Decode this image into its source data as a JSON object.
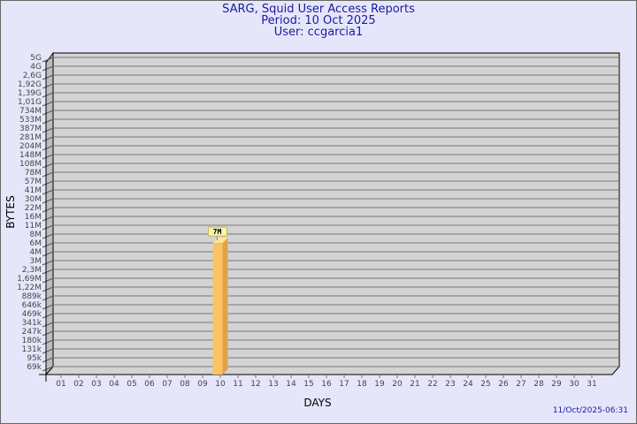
{
  "header": {
    "title": "SARG, Squid User Access Reports",
    "period": "Period: 10 Oct 2025",
    "user": "User: ccgarcia1"
  },
  "timestamp": "11/Oct/2025-06:31",
  "colors": {
    "background": "#e6e6fa",
    "plot": "#d3d3d3",
    "bar_front": "#fcc365",
    "bar_side": "#e0a348",
    "bar_top": "#fde59a",
    "title": "#1a1aa0",
    "label_box": "#f4f4b4"
  },
  "chart_data": {
    "type": "bar",
    "xlabel": "DAYS",
    "ylabel": "BYTES",
    "y_scale": "log-like (non-linear tick labels)",
    "y_ticks": [
      "5G",
      "4G",
      "2,6G",
      "1,92G",
      "1,39G",
      "1,01G",
      "734M",
      "533M",
      "387M",
      "281M",
      "204M",
      "148M",
      "108M",
      "78M",
      "57M",
      "41M",
      "30M",
      "22M",
      "16M",
      "11M",
      "8M",
      "6M",
      "4M",
      "3M",
      "2,3M",
      "1,69M",
      "1,22M",
      "889k",
      "646k",
      "469k",
      "341k",
      "247k",
      "180k",
      "131k",
      "95k",
      "69k"
    ],
    "y_tick_values": [
      5000000000.0,
      4000000000.0,
      2600000000.0,
      1920000000.0,
      1390000000.0,
      1010000000.0,
      734000000.0,
      533000000.0,
      387000000.0,
      281000000.0,
      204000000.0,
      148000000.0,
      108000000.0,
      78000000.0,
      57000000.0,
      41000000.0,
      30000000.0,
      22000000.0,
      16000000.0,
      11000000.0,
      8000000.0,
      6000000.0,
      4000000.0,
      3000000.0,
      2300000.0,
      1690000.0,
      1220000.0,
      889000.0,
      646000.0,
      469000.0,
      341000.0,
      247000.0,
      180000.0,
      131000.0,
      95000.0,
      69000.0
    ],
    "categories": [
      "01",
      "02",
      "03",
      "04",
      "05",
      "06",
      "07",
      "08",
      "09",
      "10",
      "11",
      "12",
      "13",
      "14",
      "15",
      "16",
      "17",
      "18",
      "19",
      "20",
      "21",
      "22",
      "23",
      "24",
      "25",
      "26",
      "27",
      "28",
      "29",
      "30",
      "31"
    ],
    "bars": [
      {
        "category": "10",
        "value": 7000000,
        "label": "7M"
      }
    ],
    "grid": true
  }
}
